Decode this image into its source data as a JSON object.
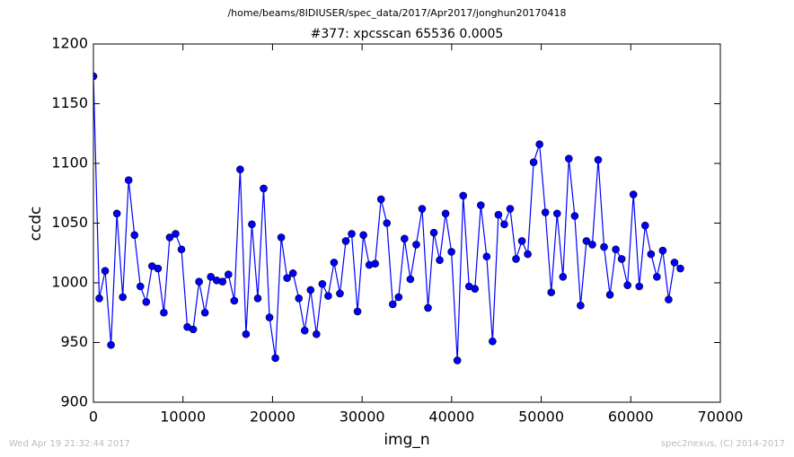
{
  "chart_data": {
    "type": "line",
    "suptitle": "/home/beams/8IDIUSER/spec_data/2017/Apr2017/jonghun20170418",
    "title": "#377: xpcsscan 65536 0.0005",
    "xlabel": "img_n",
    "ylabel": "ccdc",
    "x": [
      0,
      655.36,
      1310.72,
      1966.08,
      2621.44,
      3276.8,
      3932.16,
      4587.52,
      5242.88,
      5898.24,
      6553.6,
      7208.96,
      7864.32,
      8519.68,
      9175.04,
      9830.4,
      10485.76,
      11141.12,
      11796.48,
      12451.84,
      13107.2,
      13762.56,
      14417.92,
      15073.28,
      15728.64,
      16384,
      17039.36,
      17694.72,
      18350.08,
      19005.44,
      19660.8,
      20316.16,
      20971.52,
      21626.88,
      22282.24,
      22937.6,
      23592.96,
      24248.32,
      24903.68,
      25559.04,
      26214.4,
      26869.76,
      27525.12,
      28180.48,
      28835.84,
      29491.2,
      30146.56,
      30801.92,
      31457.28,
      32112.64,
      32768,
      33423.36,
      34078.72,
      34734.08,
      35389.44,
      36044.8,
      36700.16,
      37355.52,
      38010.88,
      38666.24,
      39321.6,
      39976.96,
      40632.32,
      41287.68,
      41943.04,
      42598.4,
      43253.76,
      43909.12,
      44564.48,
      45219.84,
      45875.2,
      46530.56,
      47185.92,
      47841.28,
      48496.64,
      49152,
      49807.36,
      50462.72,
      51118.08,
      51773.44,
      52428.8,
      53084.16,
      53739.52,
      54394.88,
      55050.24,
      55705.6,
      56360.96,
      57016.32,
      57671.68,
      58327.04,
      58982.4,
      59637.76,
      60293.12,
      60948.48,
      61603.84,
      62259.2,
      62914.56,
      63569.92,
      64225.28,
      64880.64,
      65536
    ],
    "series": [
      {
        "color": "#0000ff",
        "values": [
          1173,
          987,
          1010,
          948,
          1058,
          988,
          1086,
          1040,
          997,
          984,
          1014,
          1012,
          975,
          1038,
          1041,
          1028,
          963,
          961,
          1001,
          975,
          1005,
          1002,
          1001,
          1007,
          985,
          1095,
          957,
          1049,
          987,
          1079,
          971,
          937,
          1038,
          1004,
          1008,
          987,
          960,
          994,
          957,
          999,
          989,
          1017,
          991,
          1035,
          1041,
          976,
          1040,
          1015,
          1016,
          1070,
          1050,
          982,
          988,
          1037,
          1003,
          1032,
          1062,
          979,
          1042,
          1019,
          1058,
          1026,
          935,
          1073,
          997,
          995,
          1065,
          1022,
          951,
          1057,
          1049,
          1062,
          1020,
          1035,
          1024,
          1101,
          1116,
          1059,
          992,
          1058,
          1005,
          1104,
          1056,
          981,
          1035,
          1032,
          1103,
          1030,
          990,
          1028,
          1020,
          998,
          1074,
          997,
          1048,
          1024,
          1005,
          1027,
          986,
          1017,
          1012
        ]
      }
    ],
    "xlim": [
      0,
      70000
    ],
    "ylim": [
      900,
      1200
    ],
    "xticks": [
      0,
      10000,
      20000,
      30000,
      40000,
      50000,
      60000,
      70000
    ],
    "yticks": [
      900,
      950,
      1000,
      1050,
      1100,
      1150,
      1200
    ]
  },
  "footer": {
    "left": "Wed Apr 19 21:32:44 2017",
    "right": "spec2nexus, (C) 2014-2017"
  }
}
